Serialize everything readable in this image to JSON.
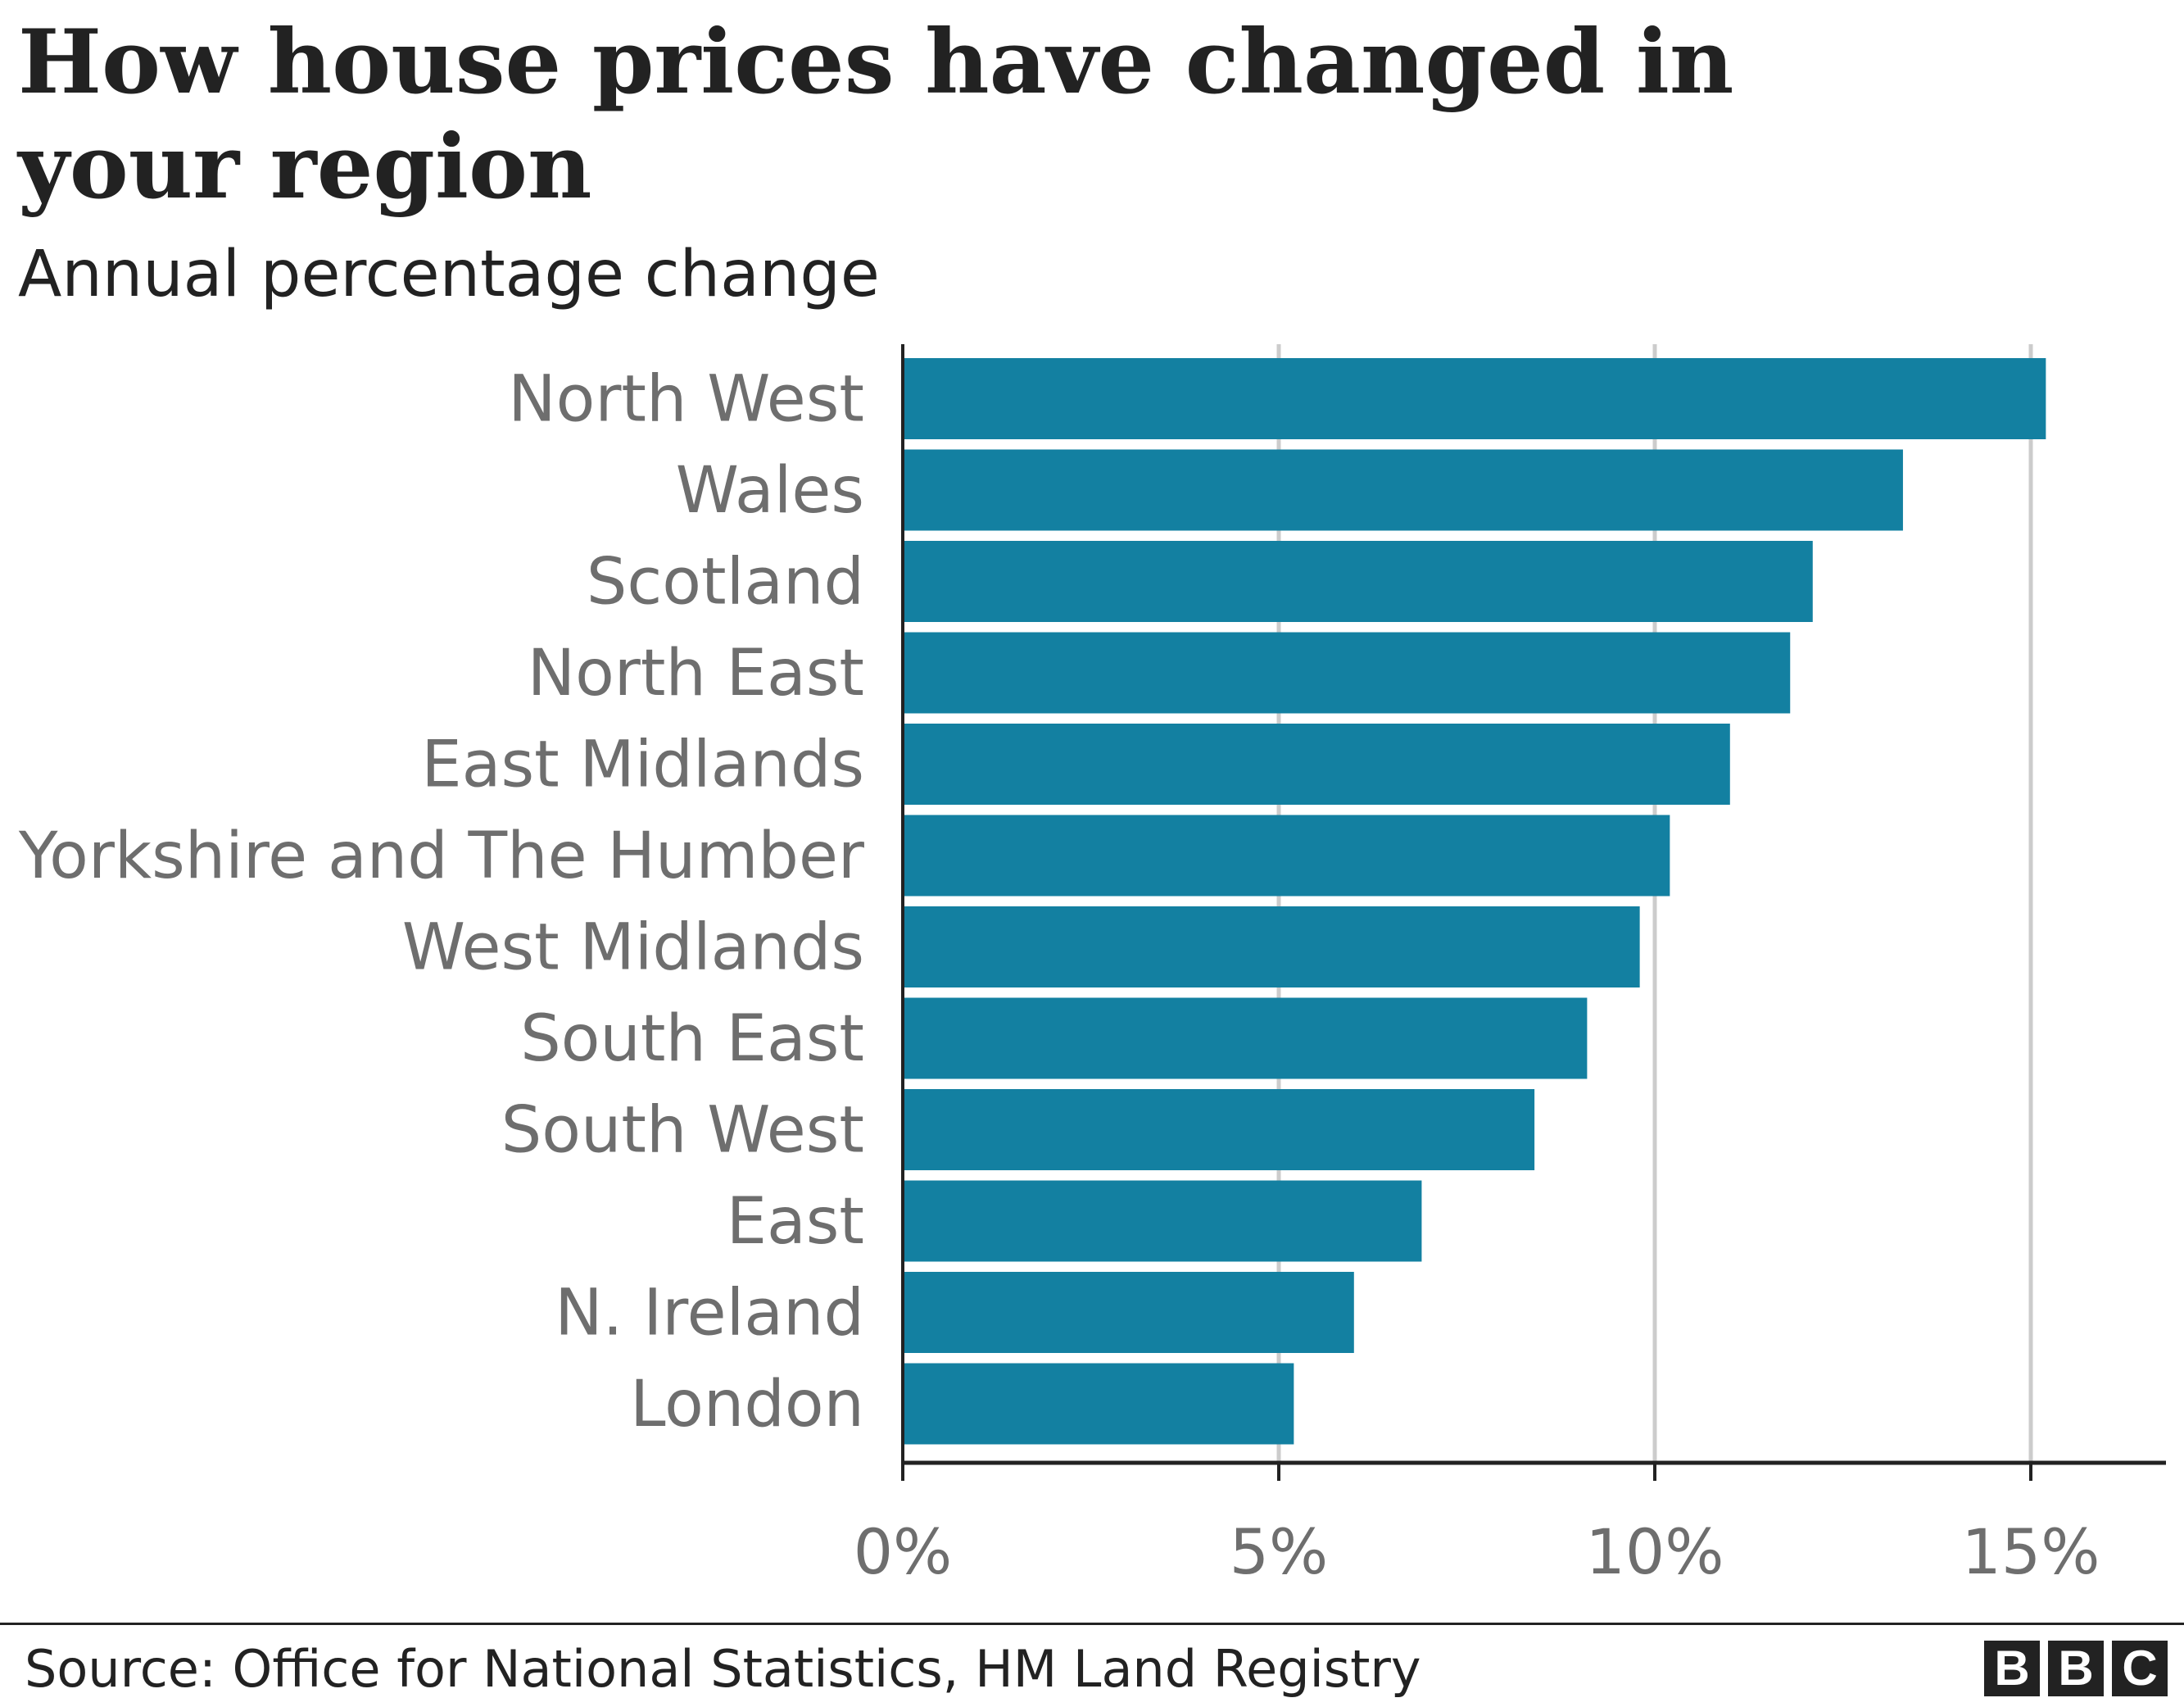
{
  "title": "How house prices have changed in your region",
  "subtitle": "Annual percentage change",
  "source": "Source: Office for National Statistics, HM Land Registry",
  "logo": "BBC",
  "colors": {
    "bar": "#1380A1",
    "grid": "#cccccc",
    "axis": "#222222",
    "label": "#6e6e6e"
  },
  "chart_data": {
    "type": "bar",
    "orientation": "horizontal",
    "categories": [
      "North West",
      "Wales",
      "Scotland",
      "North East",
      "East Midlands",
      "Yorkshire and The Humber",
      "West Midlands",
      "South East",
      "South West",
      "East",
      "N. Ireland",
      "London"
    ],
    "values": [
      15.2,
      13.3,
      12.1,
      11.8,
      11.0,
      10.2,
      9.8,
      9.1,
      8.4,
      6.9,
      6.0,
      5.2
    ],
    "xlim": [
      0,
      16.8
    ],
    "xticks": [
      0,
      5,
      10,
      15
    ],
    "xtick_labels": [
      "0%",
      "5%",
      "10%",
      "15%"
    ],
    "grid": true,
    "xlabel": "",
    "ylabel": ""
  }
}
